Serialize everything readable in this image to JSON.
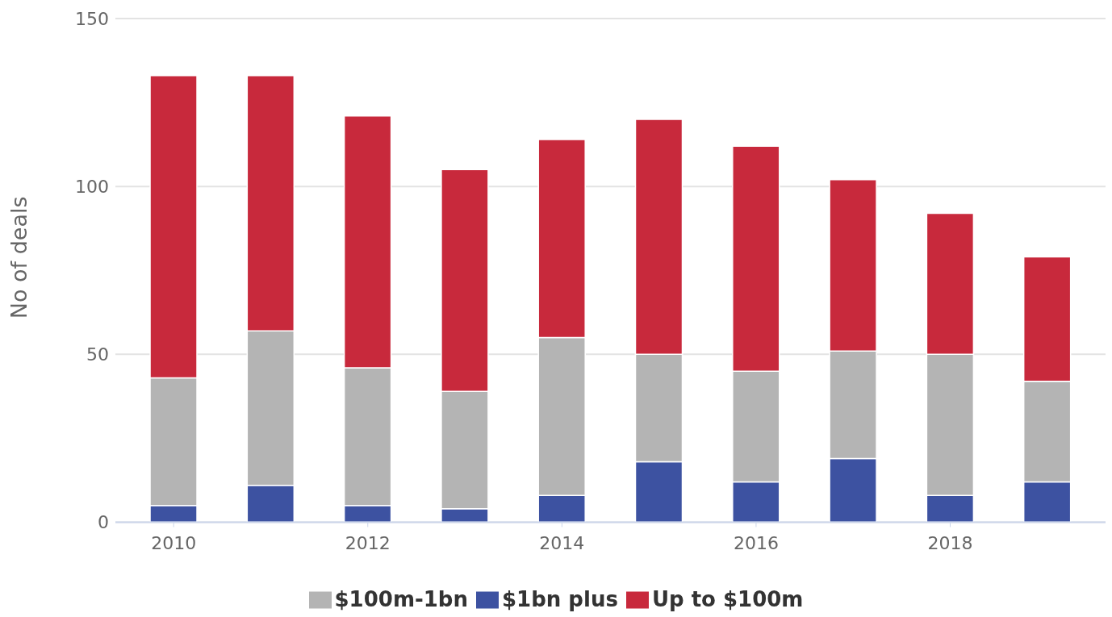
{
  "chart_data": {
    "type": "bar",
    "stacked": true,
    "ylabel": "No of deals",
    "x": [
      2010,
      2011,
      2012,
      2013,
      2014,
      2015,
      2016,
      2017,
      2018,
      2019
    ],
    "series": [
      {
        "name": "$1bn plus",
        "color": "#3d52a1",
        "values": [
          5,
          11,
          5,
          4,
          8,
          18,
          12,
          19,
          8,
          12
        ]
      },
      {
        "name": "$100m-1bn",
        "color": "#b4b4b4",
        "values": [
          38,
          46,
          41,
          35,
          47,
          32,
          33,
          32,
          42,
          30
        ]
      },
      {
        "name": "Up to $100m",
        "color": "#c8293c",
        "values": [
          90,
          76,
          75,
          66,
          59,
          70,
          67,
          51,
          42,
          37
        ]
      }
    ],
    "xlim": [
      2009.4,
      2019.6
    ],
    "xticks": [
      2010,
      2012,
      2014,
      2016,
      2018
    ],
    "ylim": [
      0,
      150
    ],
    "yticks": [
      0,
      50,
      100,
      150
    ],
    "grid": "y",
    "legend": "bottom"
  }
}
